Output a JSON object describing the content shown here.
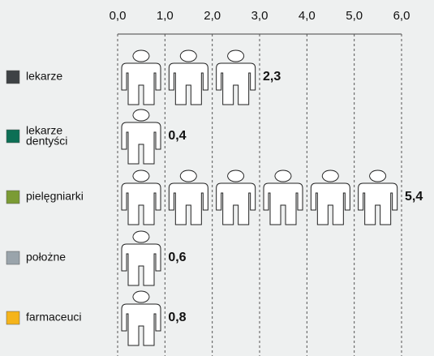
{
  "chart_data": {
    "type": "pictogram",
    "categories": [
      "lekarze",
      "lekarze dentyści",
      "pielęgniarki",
      "położne",
      "farmaceuci"
    ],
    "values": [
      2.3,
      0.4,
      5.4,
      0.6,
      0.8
    ],
    "value_labels": [
      "2,3",
      "0,4",
      "5,4",
      "0,6",
      "0,8"
    ],
    "colors": [
      "#3e4245",
      "#0d6f55",
      "#7b9b34",
      "#9aa4ab",
      "#f5b41b"
    ],
    "xlim": [
      0,
      6
    ],
    "xticks": [
      {
        "value": 0,
        "label": "0,0"
      },
      {
        "value": 1,
        "label": "1,0"
      },
      {
        "value": 2,
        "label": "2,0"
      },
      {
        "value": 3,
        "label": "3,0"
      },
      {
        "value": 4,
        "label": "4,0"
      },
      {
        "value": 5,
        "label": "5,0"
      },
      {
        "value": 6,
        "label": "6,0"
      }
    ],
    "grid": true
  }
}
